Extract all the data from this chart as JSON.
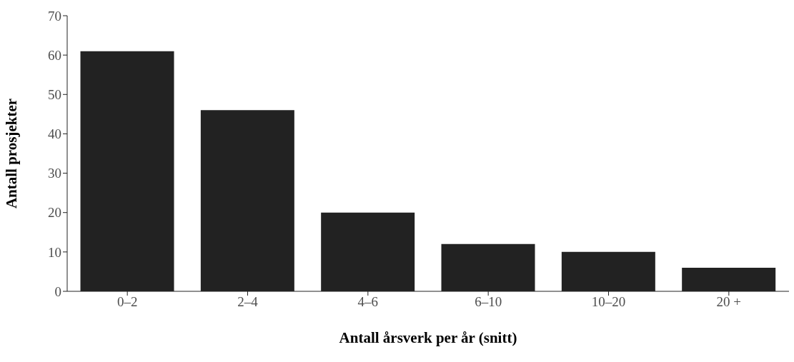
{
  "chart_data": {
    "type": "bar",
    "xlabel": "Antall årsverk per år (snitt)",
    "ylabel": "Antall prosjekter",
    "categories": [
      "0–2",
      "2–4",
      "4–6",
      "6–10",
      "10–20",
      "20 +"
    ],
    "values": [
      61,
      46,
      20,
      12,
      10,
      6
    ],
    "color": "#222222",
    "ylim": [
      0,
      70
    ],
    "yticks": [
      0,
      10,
      20,
      30,
      40,
      50,
      60,
      70
    ],
    "grid": false,
    "legend": false
  }
}
